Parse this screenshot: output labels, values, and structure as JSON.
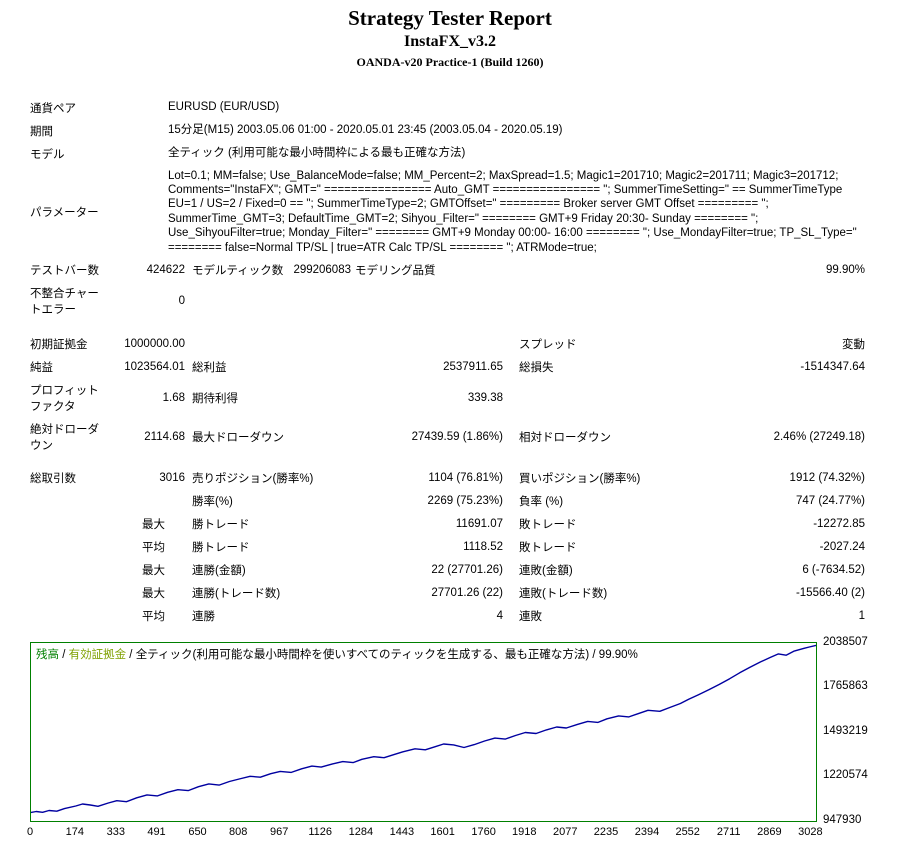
{
  "header": {
    "title": "Strategy Tester Report",
    "subtitle": "InstaFX_v3.2",
    "broker": "OANDA-v20 Practice-1 (Build 1260)"
  },
  "info": {
    "symbol_label": "通貨ペア",
    "symbol_value": "EURUSD (EUR/USD)",
    "period_label": "期間",
    "period_value": "15分足(M15) 2003.05.06 01:00 - 2020.05.01 23:45 (2003.05.04 - 2020.05.19)",
    "model_label": "モデル",
    "model_value": "全ティック (利用可能な最小時間枠による最も正確な方法)",
    "parameters_label": "パラメーター",
    "parameters_value": "Lot=0.1; MM=false; Use_BalanceMode=false; MM_Percent=2; MaxSpread=1.5; Magic1=201710; Magic2=201711; Magic3=201712; Comments=\"InstaFX\"; GMT=\" ================ Auto_GMT ================ \"; SummerTimeSetting=\" == SummerTimeType EU=1 / US=2 / Fixed=0 == \"; SummerTimeType=2; GMTOffset=\" ========= Broker server GMT Offset ========= \"; SummerTime_GMT=3; DefaultTime_GMT=2; Sihyou_Filter=\" ======== GMT+9 Friday 20:30- Sunday ======== \"; Use_SihyouFilter=true; Monday_Filter=\" ======== GMT+9 Monday 00:00- 16:00 ======== \"; Use_MondayFilter=true; TP_SL_Type=\" ======== false=Normal TP/SL | true=ATR Calc TP/SL ======== \"; ATRMode=true;",
    "bars_label": "テストバー数",
    "bars_value": "424622",
    "ticks_label": "モデルティック数",
    "ticks_value": "299206083",
    "quality_label": "モデリング品質",
    "quality_value": "99.90%",
    "mismatch_label": "不整合チャー\nトエラー",
    "mismatch_value": "0"
  },
  "results": {
    "rows": [
      {
        "cells": [
          {
            "t": "初期証拠金"
          },
          {
            "t": "1000000.00"
          },
          {
            "t": ""
          },
          {
            "t": ""
          },
          {
            "t": "スプレッド"
          },
          {
            "t": "変動"
          }
        ]
      },
      {
        "cells": [
          {
            "t": "純益"
          },
          {
            "t": "1023564.01"
          },
          {
            "t": "総利益"
          },
          {
            "t": "2537911.65"
          },
          {
            "t": "総損失"
          },
          {
            "t": "-1514347.64"
          }
        ]
      },
      {
        "cells": [
          {
            "t": "プロフィット\nファクタ"
          },
          {
            "t": "1.68"
          },
          {
            "t": "期待利得"
          },
          {
            "t": "339.38"
          },
          {
            "t": ""
          },
          {
            "t": ""
          }
        ]
      },
      {
        "cells": [
          {
            "t": "絶対ドローダ\nウン"
          },
          {
            "t": "2114.68"
          },
          {
            "t": "最大ドローダウン"
          },
          {
            "t": "27439.59 (1.86%)"
          },
          {
            "t": "相対ドローダウン"
          },
          {
            "t": "2.46% (27249.18)"
          }
        ]
      },
      {
        "spacer": true
      },
      {
        "cells": [
          {
            "t": "総取引数"
          },
          {
            "t": "3016"
          },
          {
            "t": "売りポジション(勝率%)"
          },
          {
            "t": "1104 (76.81%)"
          },
          {
            "t": "買いポジション(勝率%)"
          },
          {
            "t": "1912 (74.32%)"
          }
        ]
      },
      {
        "cells": [
          {
            "t": ""
          },
          {
            "t": ""
          },
          {
            "t": "勝率(%)"
          },
          {
            "t": "2269 (75.23%)"
          },
          {
            "t": "負率 (%)"
          },
          {
            "t": "747 (24.77%)"
          }
        ]
      },
      {
        "cells": [
          {
            "t": ""
          },
          {
            "t": "最大",
            "q": true
          },
          {
            "t": "勝トレード"
          },
          {
            "t": "11691.07"
          },
          {
            "t": "敗トレード"
          },
          {
            "t": "-12272.85"
          }
        ]
      },
      {
        "cells": [
          {
            "t": ""
          },
          {
            "t": "平均",
            "q": true
          },
          {
            "t": "勝トレード"
          },
          {
            "t": "1118.52"
          },
          {
            "t": "敗トレード"
          },
          {
            "t": "-2027.24"
          }
        ]
      },
      {
        "cells": [
          {
            "t": ""
          },
          {
            "t": "最大",
            "q": true
          },
          {
            "t": "連勝(金額)"
          },
          {
            "t": "22 (27701.26)"
          },
          {
            "t": "連敗(金額)"
          },
          {
            "t": "6 (-7634.52)"
          }
        ]
      },
      {
        "cells": [
          {
            "t": ""
          },
          {
            "t": "最大",
            "q": true
          },
          {
            "t": "連勝(トレード数)"
          },
          {
            "t": "27701.26 (22)"
          },
          {
            "t": "連敗(トレード数)"
          },
          {
            "t": "-15566.40 (2)"
          }
        ]
      },
      {
        "cells": [
          {
            "t": ""
          },
          {
            "t": "平均",
            "q": true
          },
          {
            "t": "連勝"
          },
          {
            "t": "4"
          },
          {
            "t": "連敗"
          },
          {
            "t": "1"
          }
        ]
      }
    ]
  },
  "colors": {
    "balance_legend": "#008000",
    "equity_legend": "#7FA000",
    "balance_line": "#0000A0",
    "chart_border": "#008000"
  },
  "chart_data": {
    "type": "line",
    "title": "",
    "xlabel": "",
    "ylabel": "",
    "legend": {
      "balance_label": "残高",
      "equity_label": "有効証拠金",
      "model_text": "全ティック(利用可能な最小時間枠を使いすべてのティックを生成する、最も正確な方法)",
      "quality": "99.90%",
      "sep": " / "
    },
    "y_ticks": [
      "2038507",
      "1765863",
      "1493219",
      "1220574",
      "947930"
    ],
    "x_ticks": [
      0,
      174,
      333,
      491,
      650,
      808,
      967,
      1126,
      1284,
      1443,
      1601,
      1760,
      1918,
      2077,
      2235,
      2394,
      2552,
      2711,
      2869,
      3028
    ],
    "x_max": 3046,
    "y_min": 947930,
    "y_max": 2038507,
    "series": [
      [
        0,
        1000000
      ],
      [
        20,
        1006000
      ],
      [
        45,
        1001000
      ],
      [
        70,
        1012000
      ],
      [
        100,
        1008000
      ],
      [
        130,
        1024000
      ],
      [
        174,
        1040000
      ],
      [
        200,
        1052000
      ],
      [
        230,
        1046000
      ],
      [
        260,
        1038000
      ],
      [
        300,
        1058000
      ],
      [
        333,
        1072000
      ],
      [
        370,
        1066000
      ],
      [
        410,
        1090000
      ],
      [
        450,
        1108000
      ],
      [
        491,
        1102000
      ],
      [
        530,
        1124000
      ],
      [
        570,
        1140000
      ],
      [
        610,
        1134000
      ],
      [
        650,
        1158000
      ],
      [
        690,
        1175000
      ],
      [
        730,
        1168000
      ],
      [
        770,
        1190000
      ],
      [
        808,
        1205000
      ],
      [
        850,
        1222000
      ],
      [
        890,
        1216000
      ],
      [
        930,
        1238000
      ],
      [
        967,
        1252000
      ],
      [
        1010,
        1246000
      ],
      [
        1050,
        1268000
      ],
      [
        1090,
        1284000
      ],
      [
        1126,
        1278000
      ],
      [
        1170,
        1298000
      ],
      [
        1210,
        1312000
      ],
      [
        1250,
        1306000
      ],
      [
        1284,
        1326000
      ],
      [
        1330,
        1342000
      ],
      [
        1370,
        1336000
      ],
      [
        1410,
        1356000
      ],
      [
        1443,
        1372000
      ],
      [
        1490,
        1390000
      ],
      [
        1530,
        1384000
      ],
      [
        1570,
        1404000
      ],
      [
        1601,
        1420000
      ],
      [
        1640,
        1414000
      ],
      [
        1680,
        1398000
      ],
      [
        1720,
        1416000
      ],
      [
        1760,
        1438000
      ],
      [
        1800,
        1456000
      ],
      [
        1840,
        1450000
      ],
      [
        1880,
        1472000
      ],
      [
        1918,
        1490000
      ],
      [
        1960,
        1484000
      ],
      [
        2000,
        1506000
      ],
      [
        2040,
        1524000
      ],
      [
        2077,
        1518000
      ],
      [
        2120,
        1540000
      ],
      [
        2160,
        1558000
      ],
      [
        2200,
        1552000
      ],
      [
        2235,
        1574000
      ],
      [
        2280,
        1592000
      ],
      [
        2320,
        1586000
      ],
      [
        2360,
        1608000
      ],
      [
        2394,
        1626000
      ],
      [
        2440,
        1620000
      ],
      [
        2480,
        1644000
      ],
      [
        2520,
        1668000
      ],
      [
        2552,
        1694000
      ],
      [
        2590,
        1722000
      ],
      [
        2630,
        1752000
      ],
      [
        2670,
        1784000
      ],
      [
        2711,
        1820000
      ],
      [
        2750,
        1856000
      ],
      [
        2790,
        1890000
      ],
      [
        2830,
        1922000
      ],
      [
        2869,
        1950000
      ],
      [
        2900,
        1972000
      ],
      [
        2930,
        1964000
      ],
      [
        2960,
        1988000
      ],
      [
        3000,
        2006000
      ],
      [
        3020,
        2014000
      ],
      [
        3046,
        2023564
      ]
    ]
  }
}
